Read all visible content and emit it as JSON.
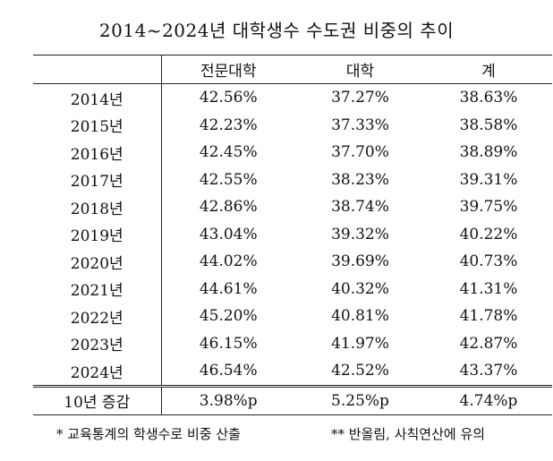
{
  "title": "2014~2024년 대학생수 수도권 비중의 추이",
  "table": {
    "headers": [
      "",
      "전문대학",
      "대학",
      "계"
    ],
    "rows": [
      {
        "year": "2014년",
        "vocational": "42.56%",
        "university": "37.27%",
        "total": "38.63%"
      },
      {
        "year": "2015년",
        "vocational": "42.23%",
        "university": "37.33%",
        "total": "38.58%"
      },
      {
        "year": "2016년",
        "vocational": "42.45%",
        "university": "37.70%",
        "total": "38.89%"
      },
      {
        "year": "2017년",
        "vocational": "42.55%",
        "university": "38.23%",
        "total": "39.31%"
      },
      {
        "year": "2018년",
        "vocational": "42.86%",
        "university": "38.74%",
        "total": "39.75%"
      },
      {
        "year": "2019년",
        "vocational": "43.04%",
        "university": "39.32%",
        "total": "40.22%"
      },
      {
        "year": "2020년",
        "vocational": "44.02%",
        "university": "39.69%",
        "total": "40.73%"
      },
      {
        "year": "2021년",
        "vocational": "44.61%",
        "university": "40.32%",
        "total": "41.31%"
      },
      {
        "year": "2022년",
        "vocational": "45.20%",
        "university": "40.81%",
        "total": "41.78%"
      },
      {
        "year": "2023년",
        "vocational": "46.15%",
        "university": "41.97%",
        "total": "42.87%"
      },
      {
        "year": "2024년",
        "vocational": "46.54%",
        "university": "42.52%",
        "total": "43.37%"
      }
    ],
    "footer": {
      "label": "10년 증감",
      "vocational": "3.98%p",
      "university": "5.25%p",
      "total": "4.74%p"
    }
  },
  "notes": {
    "note1": "* 교육통계의 학생수로 비중 산출",
    "note2": "** 반올림, 사칙연산에 유의"
  }
}
